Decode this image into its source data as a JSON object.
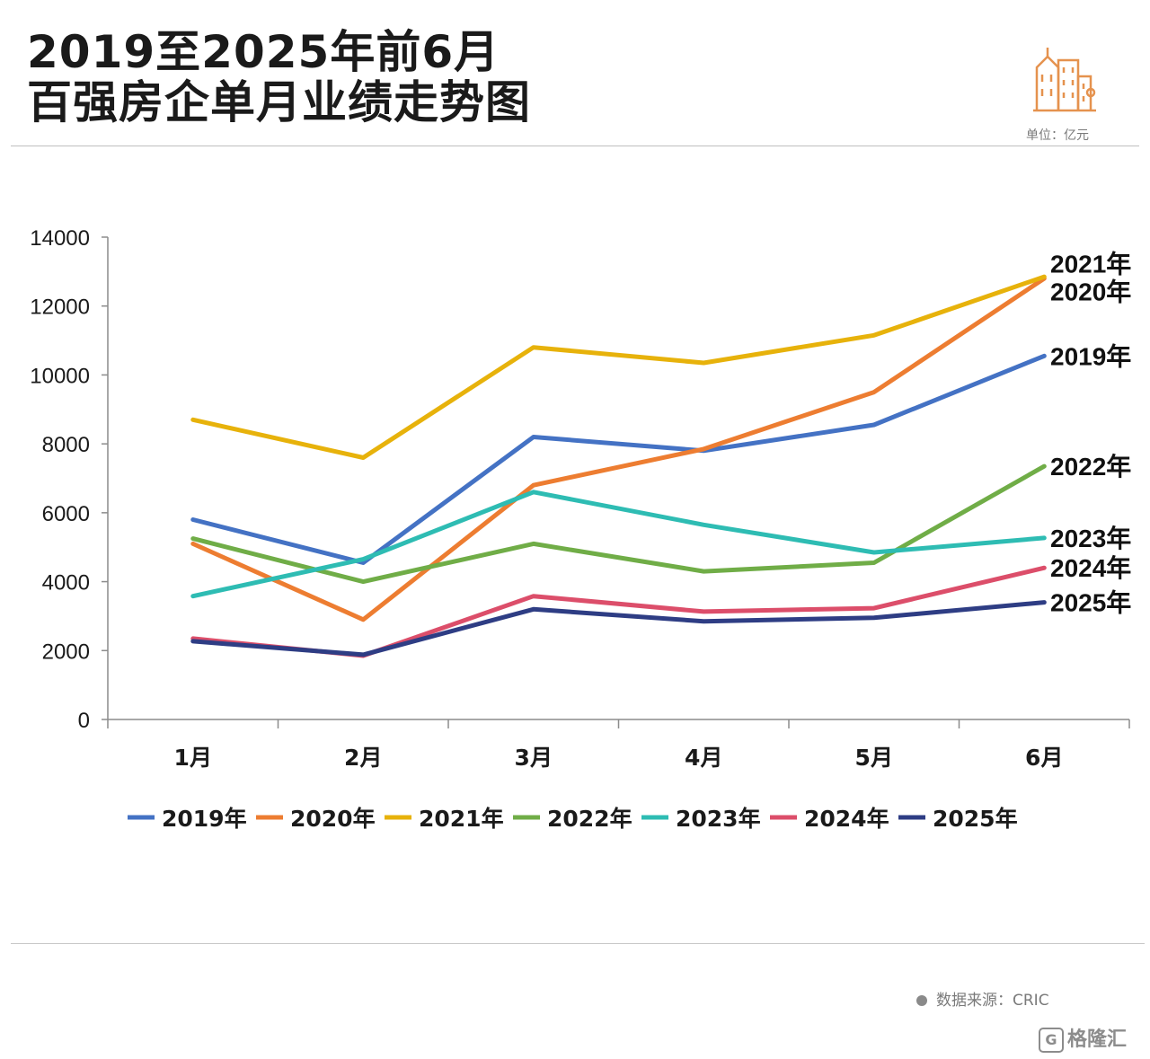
{
  "header": {
    "title_line1": "2019至2025年前6月",
    "title_line2": "百强房企单月业绩走势图",
    "unit": "单位：亿元"
  },
  "footer": {
    "source": "数据来源：CRIC",
    "brand": "格隆汇",
    "brand_mark": "G"
  },
  "icons": {
    "logo": "building-icon",
    "source": "dot-icon",
    "brand": "brand-logo-icon"
  },
  "chart_data": {
    "type": "line",
    "title": "2019至2025年前6月 百强房企单月业绩走势图",
    "xlabel": "",
    "ylabel": "",
    "unit": "亿元",
    "ylim": [
      0,
      14000
    ],
    "yticks": [
      0,
      2000,
      4000,
      6000,
      8000,
      10000,
      12000,
      14000
    ],
    "ytick_labels": [
      "0",
      "2000",
      "4000",
      "6000",
      "8000",
      "10000",
      "12000",
      "14000"
    ],
    "categories": [
      "1月",
      "2月",
      "3月",
      "4月",
      "5月",
      "6月"
    ],
    "legend_position": "bottom",
    "series": [
      {
        "name": "2019年",
        "color": "#4472C4",
        "values": [
          5800,
          4550,
          8200,
          7800,
          8550,
          10550
        ]
      },
      {
        "name": "2020年",
        "color": "#ED7D31",
        "values": [
          5100,
          2900,
          6800,
          7850,
          9500,
          12800
        ]
      },
      {
        "name": "2021年",
        "color": "#E7B20B",
        "values": [
          8700,
          7600,
          10800,
          10350,
          11150,
          12850
        ]
      },
      {
        "name": "2022年",
        "color": "#70AD47",
        "values": [
          5250,
          4000,
          5100,
          4300,
          4550,
          7350
        ]
      },
      {
        "name": "2023年",
        "color": "#2EBCB3",
        "values": [
          3580,
          4650,
          6600,
          5650,
          4850,
          5270
        ]
      },
      {
        "name": "2024年",
        "color": "#DC4E6A",
        "values": [
          2350,
          1850,
          3580,
          3130,
          3230,
          4400
        ]
      },
      {
        "name": "2025年",
        "color": "#2E3D84",
        "values": [
          2270,
          1880,
          3200,
          2850,
          2950,
          3400
        ]
      }
    ]
  }
}
